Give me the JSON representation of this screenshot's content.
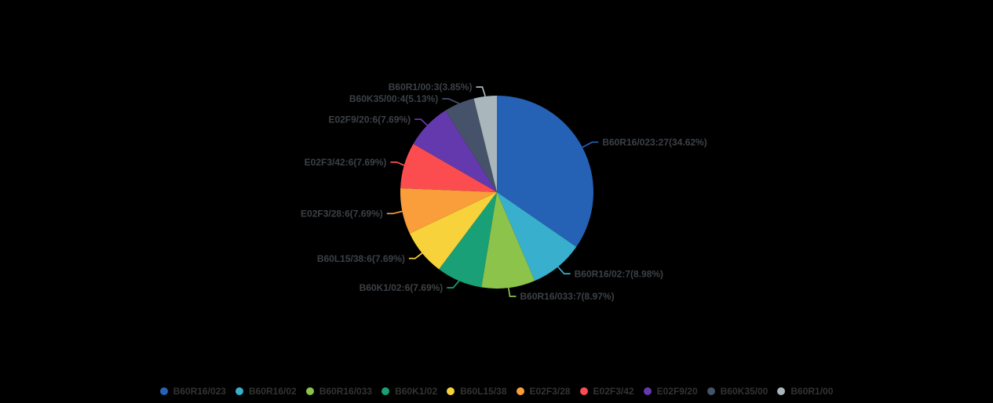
{
  "background_color": "#000000",
  "chart_data": {
    "type": "pie",
    "title": "",
    "total": 78,
    "legend_position": "bottom",
    "label_text_color": "#3C4045",
    "legend_text_color": "#333333",
    "series": [
      {
        "name": "B60R16/023",
        "value": 27,
        "percent": "34.62%",
        "label": "B60R16/023:27(34.62%)",
        "color": "#2561B5"
      },
      {
        "name": "B60R16/02",
        "value": 7,
        "percent": "8.98%",
        "label": "B60R16/02:7(8.98%)",
        "color": "#38AFCD"
      },
      {
        "name": "B60R16/033",
        "value": 7,
        "percent": "8.97%",
        "label": "B60R16/033:7(8.97%)",
        "color": "#8BC34B"
      },
      {
        "name": "B60K1/02",
        "value": 6,
        "percent": "7.69%",
        "label": "B60K1/02:6(7.69%)",
        "color": "#19A077"
      },
      {
        "name": "B60L15/38",
        "value": 6,
        "percent": "7.69%",
        "label": "B60L15/38:6(7.69%)",
        "color": "#F8D23A"
      },
      {
        "name": "E02F3/28",
        "value": 6,
        "percent": "7.69%",
        "label": "E02F3/28:6(7.69%)",
        "color": "#FA9E3B"
      },
      {
        "name": "E02F3/42",
        "value": 6,
        "percent": "7.69%",
        "label": "E02F3/42:6(7.69%)",
        "color": "#FB4D50"
      },
      {
        "name": "E02F9/20",
        "value": 6,
        "percent": "7.69%",
        "label": "E02F9/20:6(7.69%)",
        "color": "#6539AE"
      },
      {
        "name": "B60K35/00",
        "value": 4,
        "percent": "5.13%",
        "label": "B60K35/00:4(5.13%)",
        "color": "#455269"
      },
      {
        "name": "B60R1/00",
        "value": 3,
        "percent": "3.85%",
        "label": "B60R1/00:3(3.85%)",
        "color": "#A9B7BD"
      }
    ],
    "legend": [
      "B60R16/023",
      "B60R16/02",
      "B60R16/033",
      "B60K1/02",
      "B60L15/38",
      "E02F3/28",
      "E02F3/42",
      "E02F9/20",
      "B60K35/00",
      "B60R1/00"
    ]
  }
}
